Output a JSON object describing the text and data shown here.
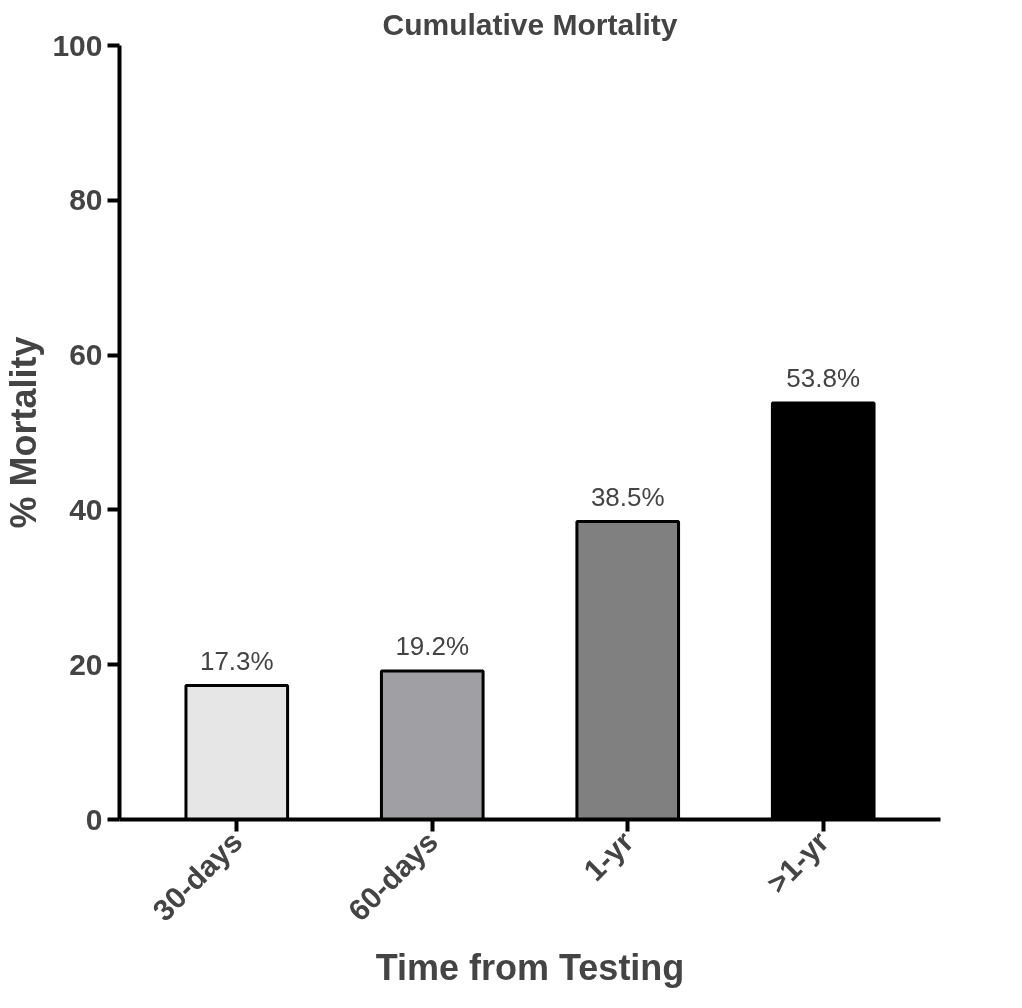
{
  "chart_data": {
    "type": "bar",
    "title": "Cumulative Mortality",
    "xlabel": "Time from Testing",
    "ylabel": "% Mortality",
    "categories": [
      "30-days",
      "60-days",
      "1-yr",
      ">1-yr"
    ],
    "values": [
      17.3,
      19.2,
      38.5,
      53.8
    ],
    "colors": [
      "#e6e6e6",
      "#a09fa4",
      "#808080",
      "#000000"
    ],
    "value_labels": [
      "17.3%",
      "19.2%",
      "38.5%",
      "53.8%"
    ],
    "ylim": [
      0,
      100
    ],
    "yticks": [
      0,
      20,
      40,
      60,
      80,
      100
    ],
    "grid": false
  }
}
